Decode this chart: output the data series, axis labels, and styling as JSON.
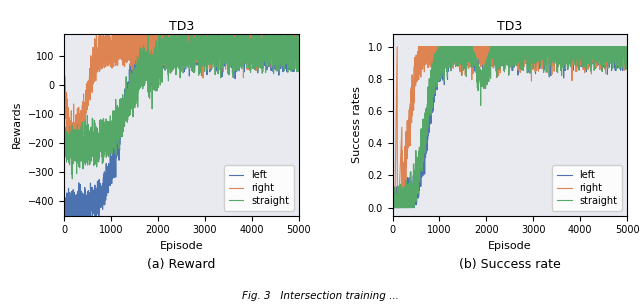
{
  "title": "TD3",
  "left_label": "left",
  "right_label": "right",
  "straight_label": "straight",
  "color_left": "#4c72b0",
  "color_right": "#dd8452",
  "color_straight": "#55a868",
  "reward_ylabel": "Rewards",
  "success_ylabel": "Success rates",
  "xlabel": "Episode",
  "reward_ylim": [
    -450,
    175
  ],
  "success_ylim": [
    -0.05,
    1.08
  ],
  "xlim": [
    0,
    5000
  ],
  "caption_a": "(a) Reward",
  "caption_b": "(b) Success rate",
  "n_episodes": 5000,
  "background_color": "#e8eaf0",
  "lw": 0.8
}
